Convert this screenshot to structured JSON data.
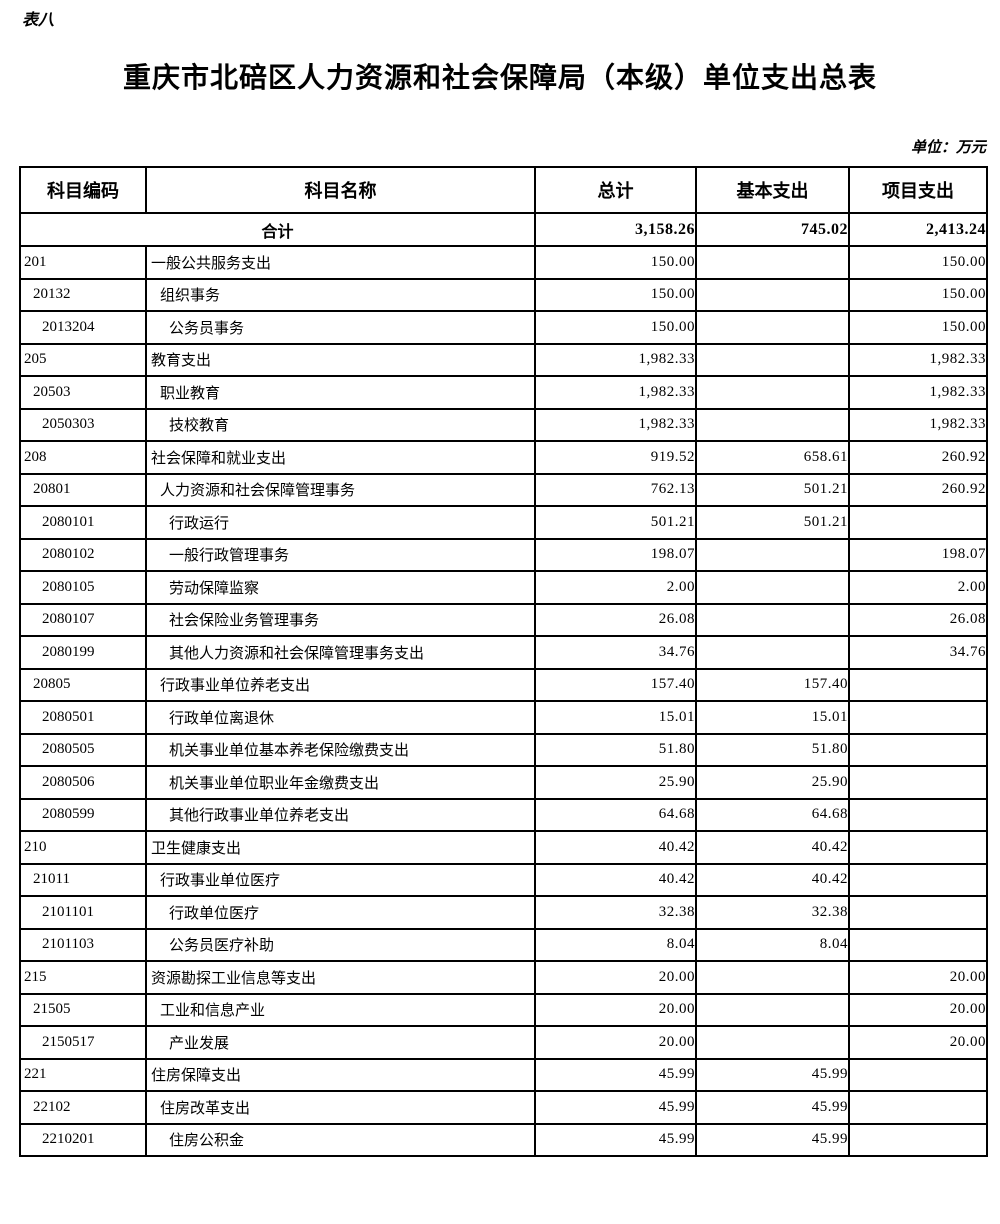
{
  "page": {
    "table_tag": "表八",
    "title": "重庆市北碚区人力资源和社会保障局（本级）单位支出总表",
    "unit_note": "单位：万元"
  },
  "table": {
    "columns": [
      "科目编码",
      "科目名称",
      "总计",
      "基本支出",
      "项目支出"
    ],
    "total_row": {
      "label": "合计",
      "total": "3,158.26",
      "basic": "745.02",
      "project": "2,413.24"
    },
    "rows": [
      {
        "code": "201",
        "name": "一般公共服务支出",
        "total": "150.00",
        "basic": "",
        "project": "150.00",
        "level": 1
      },
      {
        "code": "20132",
        "name": "组织事务",
        "total": "150.00",
        "basic": "",
        "project": "150.00",
        "level": 2
      },
      {
        "code": "2013204",
        "name": "公务员事务",
        "total": "150.00",
        "basic": "",
        "project": "150.00",
        "level": 3
      },
      {
        "code": "205",
        "name": "教育支出",
        "total": "1,982.33",
        "basic": "",
        "project": "1,982.33",
        "level": 1
      },
      {
        "code": "20503",
        "name": "职业教育",
        "total": "1,982.33",
        "basic": "",
        "project": "1,982.33",
        "level": 2
      },
      {
        "code": "2050303",
        "name": "技校教育",
        "total": "1,982.33",
        "basic": "",
        "project": "1,982.33",
        "level": 3
      },
      {
        "code": "208",
        "name": "社会保障和就业支出",
        "total": "919.52",
        "basic": "658.61",
        "project": "260.92",
        "level": 1
      },
      {
        "code": "20801",
        "name": "人力资源和社会保障管理事务",
        "total": "762.13",
        "basic": "501.21",
        "project": "260.92",
        "level": 2
      },
      {
        "code": "2080101",
        "name": "行政运行",
        "total": "501.21",
        "basic": "501.21",
        "project": "",
        "level": 3
      },
      {
        "code": "2080102",
        "name": "一般行政管理事务",
        "total": "198.07",
        "basic": "",
        "project": "198.07",
        "level": 3
      },
      {
        "code": "2080105",
        "name": "劳动保障监察",
        "total": "2.00",
        "basic": "",
        "project": "2.00",
        "level": 3
      },
      {
        "code": "2080107",
        "name": "社会保险业务管理事务",
        "total": "26.08",
        "basic": "",
        "project": "26.08",
        "level": 3
      },
      {
        "code": "2080199",
        "name": "其他人力资源和社会保障管理事务支出",
        "total": "34.76",
        "basic": "",
        "project": "34.76",
        "level": 3
      },
      {
        "code": "20805",
        "name": "行政事业单位养老支出",
        "total": "157.40",
        "basic": "157.40",
        "project": "",
        "level": 2
      },
      {
        "code": "2080501",
        "name": "行政单位离退休",
        "total": "15.01",
        "basic": "15.01",
        "project": "",
        "level": 3
      },
      {
        "code": "2080505",
        "name": "机关事业单位基本养老保险缴费支出",
        "total": "51.80",
        "basic": "51.80",
        "project": "",
        "level": 3
      },
      {
        "code": "2080506",
        "name": "机关事业单位职业年金缴费支出",
        "total": "25.90",
        "basic": "25.90",
        "project": "",
        "level": 3
      },
      {
        "code": "2080599",
        "name": "其他行政事业单位养老支出",
        "total": "64.68",
        "basic": "64.68",
        "project": "",
        "level": 3
      },
      {
        "code": "210",
        "name": "卫生健康支出",
        "total": "40.42",
        "basic": "40.42",
        "project": "",
        "level": 1
      },
      {
        "code": "21011",
        "name": "行政事业单位医疗",
        "total": "40.42",
        "basic": "40.42",
        "project": "",
        "level": 2
      },
      {
        "code": "2101101",
        "name": "行政单位医疗",
        "total": "32.38",
        "basic": "32.38",
        "project": "",
        "level": 3
      },
      {
        "code": "2101103",
        "name": "公务员医疗补助",
        "total": "8.04",
        "basic": "8.04",
        "project": "",
        "level": 3
      },
      {
        "code": "215",
        "name": "资源勘探工业信息等支出",
        "total": "20.00",
        "basic": "",
        "project": "20.00",
        "level": 1
      },
      {
        "code": "21505",
        "name": "工业和信息产业",
        "total": "20.00",
        "basic": "",
        "project": "20.00",
        "level": 2
      },
      {
        "code": "2150517",
        "name": "产业发展",
        "total": "20.00",
        "basic": "",
        "project": "20.00",
        "level": 3
      },
      {
        "code": "221",
        "name": "住房保障支出",
        "total": "45.99",
        "basic": "45.99",
        "project": "",
        "level": 1
      },
      {
        "code": "22102",
        "name": "住房改革支出",
        "total": "45.99",
        "basic": "45.99",
        "project": "",
        "level": 2
      },
      {
        "code": "2210201",
        "name": "住房公积金",
        "total": "45.99",
        "basic": "45.99",
        "project": "",
        "level": 3
      }
    ]
  }
}
